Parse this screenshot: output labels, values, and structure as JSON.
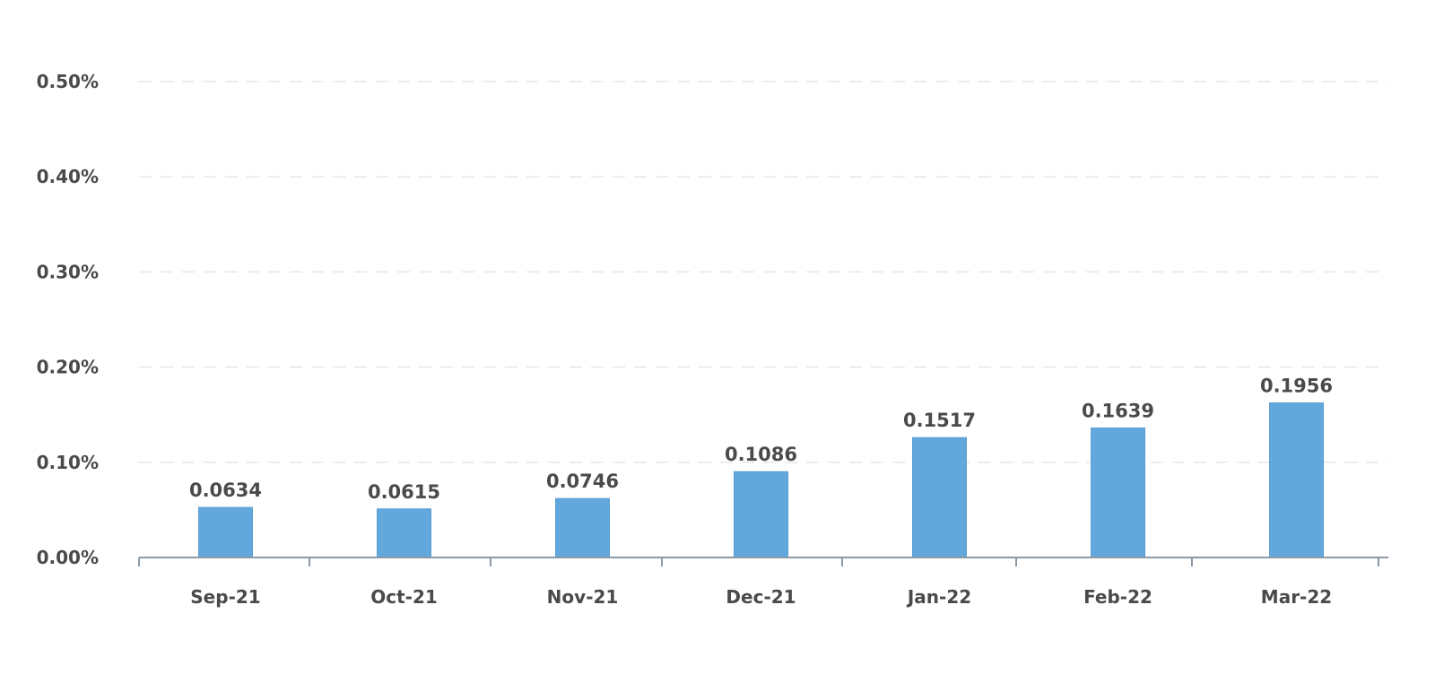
{
  "chart_data": {
    "type": "bar",
    "categories": [
      "Sep-21",
      "Oct-21",
      "Nov-21",
      "Dec-21",
      "Jan-22",
      "Feb-22",
      "Mar-22"
    ],
    "values": [
      0.0634,
      0.0615,
      0.0746,
      0.1086,
      0.1517,
      0.1639,
      0.1956
    ],
    "value_labels": [
      "0.0634",
      "0.0615",
      "0.0746",
      "0.1086",
      "0.1517",
      "0.1639",
      "0.1956"
    ],
    "y_ticks": [
      0.0,
      0.1,
      0.2,
      0.3,
      0.4,
      0.5
    ],
    "y_tick_labels": [
      "0.00%",
      "0.10%",
      "0.20%",
      "0.30%",
      "0.40%",
      "0.50%"
    ],
    "ylim": [
      0,
      0.5
    ],
    "title": "",
    "xlabel": "",
    "ylabel": "",
    "grid": true,
    "legend": "none",
    "colors": {
      "bar": "#62a8dc",
      "bar_edge": "#5a9ed2",
      "text": "#4a4a4a",
      "grid": "#e6e6e6",
      "axis": "#8c9aa8"
    }
  }
}
